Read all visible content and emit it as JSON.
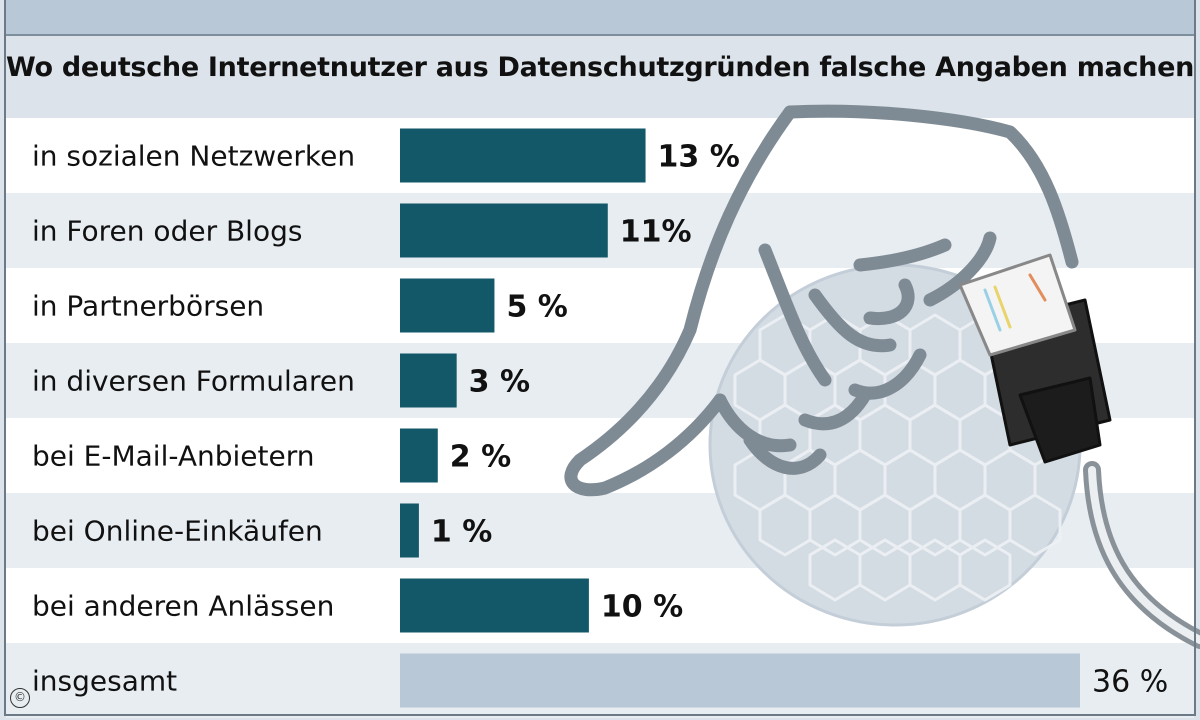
{
  "header": {
    "subtitle": "Wo deutsche Internetnutzer aus Datenschutzgründen falsche Angaben machen"
  },
  "copyright_symbol": "©",
  "chart_data": {
    "type": "bar",
    "orientation": "horizontal",
    "categories": [
      "in sozialen Netzwerken",
      "in Foren oder Blogs",
      "in Partnerbörsen",
      "in diversen Formularen",
      "bei E-Mail-Anbietern",
      "bei Online-Einkäufen",
      "bei anderen Anlässen",
      "insgesamt"
    ],
    "values": [
      13,
      11,
      5,
      3,
      2,
      1,
      10,
      36
    ],
    "value_labels": [
      "13 %",
      "11%",
      "5 %",
      "3 %",
      "2 %",
      "1 %",
      "10 %",
      "36 %"
    ],
    "unit": "%",
    "xlim": [
      0,
      36
    ],
    "colors": {
      "bar": "#135868",
      "total_bar": "#b9c8d6",
      "row_light": "#ffffff",
      "row_dark": "#e8edf2"
    }
  }
}
